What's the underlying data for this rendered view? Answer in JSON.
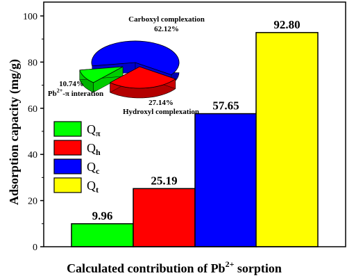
{
  "chart_data": {
    "type": "bar",
    "xlabel": "Calculated contribution of Pb",
    "xlabel_sup": "2+",
    "xlabel_end": " sorption",
    "ylabel": "Adsorption capacity (mg/g)",
    "ylim": [
      0,
      106
    ],
    "yticks": [
      0,
      20,
      40,
      60,
      80,
      100
    ],
    "grid": false,
    "legend_position": "left-middle",
    "bars": [
      {
        "legend_main": "Q",
        "legend_sub": "π",
        "value": 9.96,
        "label": "9.96",
        "color": "#00ff00"
      },
      {
        "legend_main": "Q",
        "legend_sub": "h",
        "value": 25.19,
        "label": "25.19",
        "color": "#ff0000"
      },
      {
        "legend_main": "Q",
        "legend_sub": "c",
        "value": 57.65,
        "label": "57.65",
        "color": "#0000ff"
      },
      {
        "legend_main": "Q",
        "legend_sub": "t",
        "value": 92.8,
        "label": "92.80",
        "color": "#ffff00"
      }
    ],
    "pie": {
      "type": "pie",
      "style": "3d-exploded",
      "slices": [
        {
          "name": "Carboxyl complexation",
          "percent": 62.12,
          "percent_label": "62.12%",
          "color": "#0000ff"
        },
        {
          "name": "Hydroxyl complexation",
          "percent": 27.14,
          "percent_label": "27.14%",
          "color": "#ff0000"
        },
        {
          "name": "-π interation",
          "name_prefix": "Pb",
          "name_sup": "2+",
          "percent": 10.74,
          "percent_label": "10.74%",
          "color": "#00ff00"
        }
      ]
    }
  }
}
